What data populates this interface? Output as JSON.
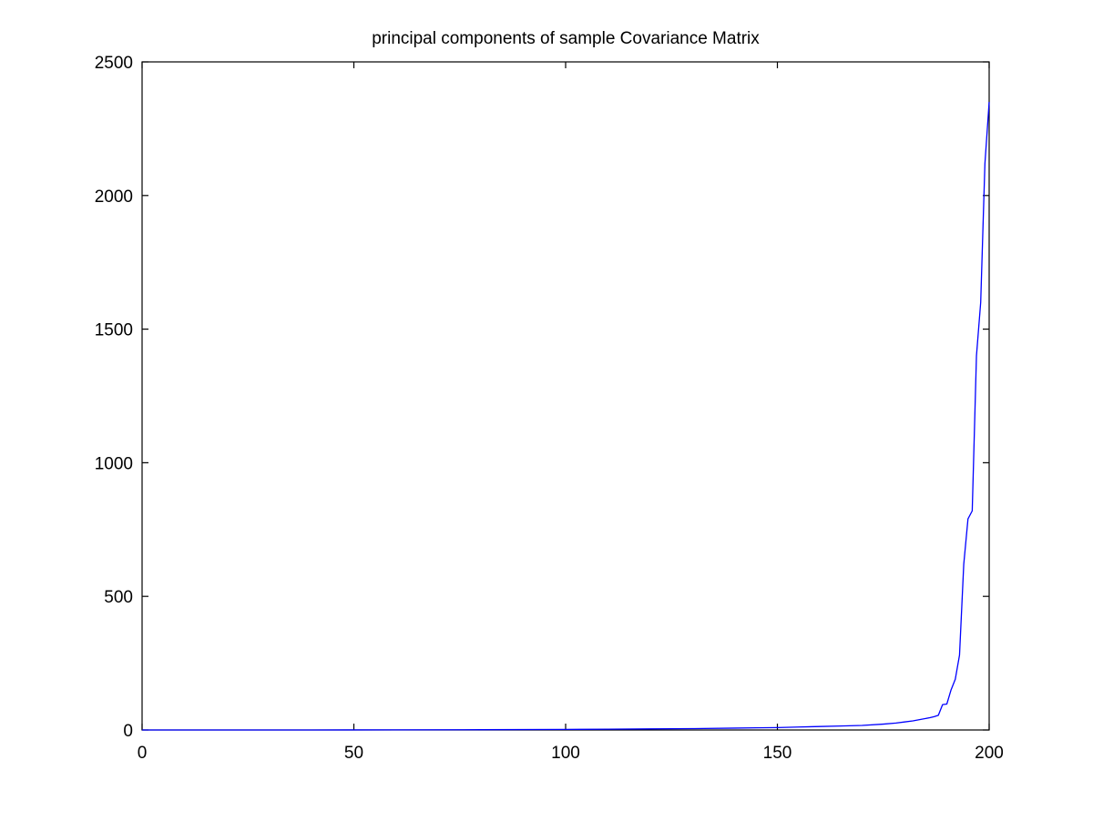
{
  "chart_data": {
    "type": "line",
    "title": "principal components of sample Covariance Matrix",
    "xlabel": "",
    "ylabel": "",
    "xlim": [
      0,
      200
    ],
    "ylim": [
      0,
      2500
    ],
    "x_ticks": [
      0,
      50,
      100,
      150,
      200
    ],
    "y_ticks": [
      0,
      500,
      1000,
      1500,
      2000,
      2500
    ],
    "x_tick_labels": [
      "0",
      "50",
      "100",
      "150",
      "200"
    ],
    "y_tick_labels": [
      "0",
      "500",
      "1000",
      "1500",
      "2000",
      "2500"
    ],
    "grid": false,
    "legend": "none",
    "series_color": "#0000ff",
    "series": [
      {
        "x": [
          0,
          20,
          40,
          60,
          80,
          100,
          110,
          120,
          130,
          140,
          145,
          150,
          155,
          160,
          165,
          170,
          175,
          178,
          180,
          182,
          184,
          186,
          187,
          188,
          189,
          190,
          191,
          192,
          193,
          194,
          195,
          196,
          197,
          198,
          199,
          200
        ],
        "values": [
          0,
          0,
          0,
          0.5,
          1,
          2,
          3,
          4,
          5,
          7,
          8,
          9,
          11,
          13,
          15,
          17,
          22,
          26,
          30,
          34,
          40,
          46,
          50,
          55,
          95,
          97,
          150,
          190,
          280,
          620,
          790,
          820,
          1400,
          1600,
          2120,
          2350
        ]
      }
    ]
  }
}
